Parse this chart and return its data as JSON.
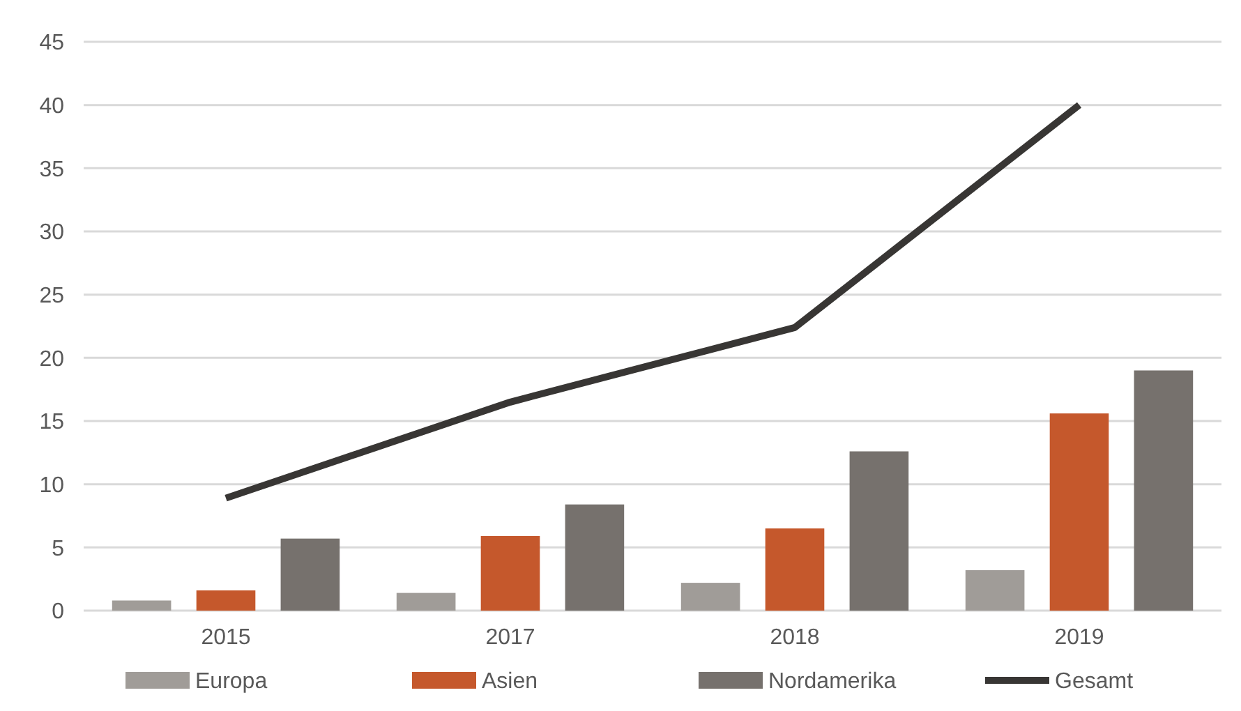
{
  "chart_data": {
    "type": "bar",
    "categories": [
      "2015",
      "2017",
      "2018",
      "2019"
    ],
    "series": [
      {
        "name": "Europa",
        "color": "#a09c98",
        "values": [
          0.8,
          1.4,
          2.2,
          3.2
        ]
      },
      {
        "name": "Asien",
        "color": "#c5582c",
        "values": [
          1.6,
          5.9,
          6.5,
          15.6
        ]
      },
      {
        "name": "Nordamerika",
        "color": "#76716d",
        "values": [
          5.7,
          8.4,
          12.6,
          19.0
        ]
      },
      {
        "name": "Gesamt",
        "type": "line",
        "color": "#383634",
        "values": [
          8.9,
          16.5,
          22.4,
          40.0
        ]
      }
    ],
    "ylim": [
      0,
      45
    ],
    "yticks": [
      0,
      5,
      10,
      15,
      20,
      25,
      30,
      35,
      40,
      45
    ],
    "grid": "y",
    "legend": "bottom",
    "marker": "none"
  }
}
